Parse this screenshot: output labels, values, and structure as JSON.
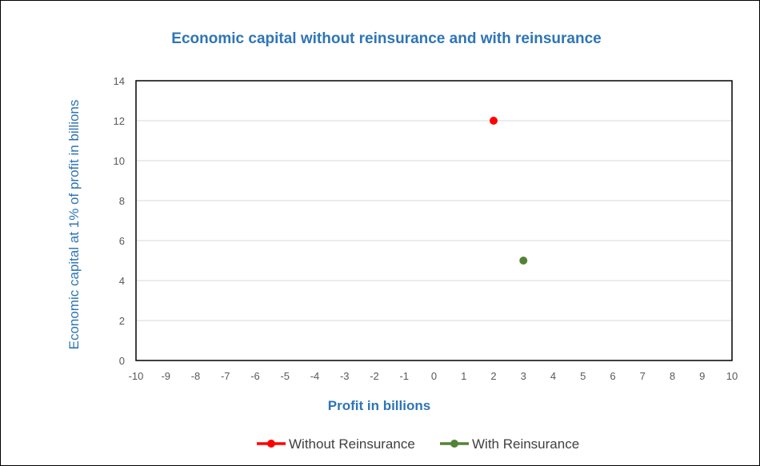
{
  "chart_data": {
    "type": "scatter",
    "title": "Economic capital without reinsurance and with reinsurance",
    "xlabel": "Profit in billions",
    "ylabel": "Economic capital at 1% of profit in billions",
    "xlim": [
      -10,
      10
    ],
    "ylim": [
      0,
      14
    ],
    "x_ticks": [
      "-10",
      "-9",
      "-8",
      "-7",
      "-6",
      "-5",
      "-4",
      "-3",
      "-2",
      "-1",
      "0",
      "1",
      "2",
      "3",
      "4",
      "5",
      "6",
      "7",
      "8",
      "9",
      "10"
    ],
    "y_ticks": [
      "0",
      "2",
      "4",
      "6",
      "8",
      "10",
      "12",
      "14"
    ],
    "grid": true,
    "legend_position": "bottom",
    "series": [
      {
        "name": "Without Reinsurance",
        "color": "#ff0000",
        "points": [
          {
            "x": 2,
            "y": 12
          }
        ]
      },
      {
        "name": "With Reinsurance",
        "color": "#548235",
        "points": [
          {
            "x": 3,
            "y": 5
          }
        ]
      }
    ],
    "title_color": "#2e75b6"
  }
}
